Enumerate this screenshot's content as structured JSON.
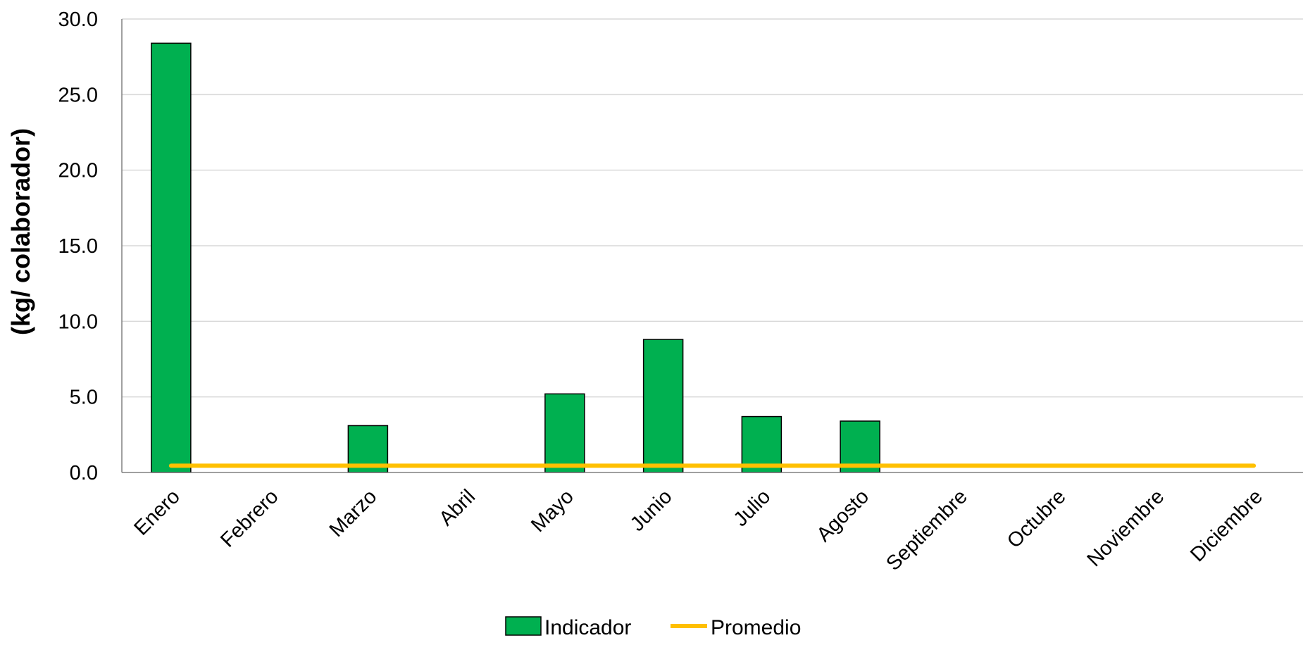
{
  "chart_data": {
    "type": "bar",
    "ylabel": "(kg/ colaborador)",
    "ylim": [
      0,
      30
    ],
    "yticks": [
      "0.0",
      "5.0",
      "10.0",
      "15.0",
      "20.0",
      "25.0",
      "30.0"
    ],
    "ytick_values": [
      0,
      5,
      10,
      15,
      20,
      25,
      30
    ],
    "grid": true,
    "legend_position": "bottom",
    "categories": [
      "Enero",
      "Febrero",
      "Marzo",
      "Abril",
      "Mayo",
      "Junio",
      "Julio",
      "Agosto",
      "Septiembre",
      "Octubre",
      "Noviembre",
      "Diciembre"
    ],
    "series": [
      {
        "name": "Indicador",
        "kind": "bar",
        "color": "#00B050",
        "values": [
          28.4,
          0,
          3.1,
          0,
          5.2,
          8.8,
          3.7,
          3.4,
          0,
          0,
          0,
          0
        ]
      },
      {
        "name": "Promedio",
        "kind": "line",
        "color": "#FFC000",
        "values": [
          0.45,
          0.45,
          0.45,
          0.45,
          0.45,
          0.45,
          0.45,
          0.45,
          0.45,
          0.45,
          0.45,
          0.45
        ]
      }
    ]
  }
}
